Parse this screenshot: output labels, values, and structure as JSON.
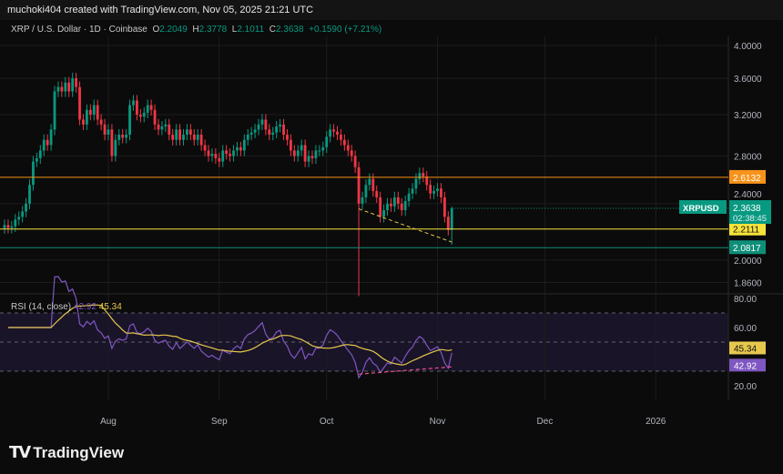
{
  "header": {
    "caption": "muchoki404 created with TradingView.com, Nov 05, 2025 21:21 UTC"
  },
  "legend": {
    "symbol": "XRP / U.S. Dollar · 1D · Coinbase",
    "o_label": "O",
    "o": "2.2049",
    "h_label": "H",
    "h": "2.3778",
    "l_label": "L",
    "l": "2.1011",
    "c_label": "C",
    "c": "2.3638",
    "change": "+0.1590 (+7.21%)"
  },
  "rsi_legend": {
    "label": "RSI (14, close)",
    "rsi": "42.92",
    "ma": "45.34"
  },
  "footer": {
    "brand": "TradingView"
  },
  "colors": {
    "up": "#089981",
    "down": "#f23645",
    "orange_line": "#f7931a",
    "yellow_line": "#f5e33b",
    "green_line": "#0f8f7a",
    "rsi": "#7e57c2",
    "rsi_ma": "#e6c84d"
  },
  "chart_data": [
    {
      "type": "candlestick",
      "scale": "log",
      "ylim": [
        1.78,
        4.1
      ],
      "y_ticks": [
        "4.0000",
        "3.6000",
        "3.2000",
        "2.8000",
        "2.4000",
        "2.0000",
        "1.8600"
      ],
      "x_ticks": [
        "Aug",
        "Sep",
        "Oct",
        "Nov",
        "Dec",
        "2026"
      ],
      "start_date": "2025-07-03",
      "closes": [
        2.24,
        2.22,
        2.23,
        2.28,
        2.3,
        2.34,
        2.4,
        2.55,
        2.75,
        2.78,
        2.85,
        2.95,
        2.9,
        3.05,
        3.45,
        3.5,
        3.45,
        3.55,
        3.45,
        3.6,
        3.5,
        3.15,
        3.1,
        3.25,
        3.2,
        3.3,
        3.15,
        3.1,
        3.0,
        3.05,
        2.8,
        2.95,
        3.0,
        2.97,
        3.0,
        3.3,
        3.35,
        3.2,
        3.18,
        3.22,
        3.3,
        3.25,
        3.1,
        3.05,
        3.08,
        3.1,
        3.0,
        2.95,
        3.05,
        2.95,
        3.0,
        3.05,
        3.0,
        2.95,
        3.0,
        2.9,
        2.85,
        2.8,
        2.82,
        2.78,
        2.75,
        2.85,
        2.82,
        2.8,
        2.85,
        2.88,
        2.85,
        2.95,
        3.0,
        3.02,
        3.05,
        3.1,
        3.15,
        3.05,
        3.0,
        3.02,
        3.08,
        3.1,
        3.0,
        2.95,
        2.85,
        2.8,
        2.85,
        2.9,
        2.75,
        2.8,
        2.78,
        2.85,
        2.85,
        2.88,
        2.98,
        3.05,
        3.03,
        3.0,
        2.95,
        2.9,
        2.85,
        2.8,
        2.7,
        2.4,
        2.45,
        2.55,
        2.6,
        2.5,
        2.45,
        2.3,
        2.35,
        2.4,
        2.38,
        2.45,
        2.4,
        2.35,
        2.42,
        2.48,
        2.52,
        2.6,
        2.65,
        2.62,
        2.55,
        2.48,
        2.5,
        2.52,
        2.45,
        2.3,
        2.2049,
        2.3638
      ],
      "notable_low": {
        "date": "2025-10-10",
        "low": 1.78
      },
      "last": {
        "open": 2.2049,
        "high": 2.3778,
        "low": 2.1011,
        "close": 2.3638
      },
      "horizontal_lines": [
        {
          "price": 2.6132,
          "label": "2.6132",
          "color": "#f7931a"
        },
        {
          "price": 2.2111,
          "label": "2.2111",
          "color": "#f5e33b"
        },
        {
          "price": 2.0817,
          "label": "2.0817",
          "color": "#0f8f7a"
        }
      ],
      "price_tag": {
        "symbol": "XRPUSD",
        "price": "2.3638",
        "countdown": "02:38:45"
      },
      "trendline": {
        "from": {
          "date": "2025-10-10",
          "price": 2.36
        },
        "to": {
          "date": "2025-11-05",
          "price": 2.12
        }
      }
    },
    {
      "type": "line",
      "title": "RSI (14, close)",
      "ylim": [
        15,
        85
      ],
      "y_ticks": [
        "80.00",
        "60.00",
        "20.00"
      ],
      "bands": [
        70,
        50,
        30
      ],
      "series": [
        {
          "name": "RSI",
          "last": 42.92
        },
        {
          "name": "RSI MA",
          "last": 45.34
        }
      ]
    }
  ]
}
